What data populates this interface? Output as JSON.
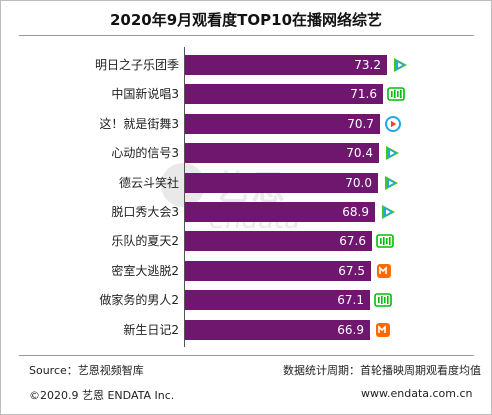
{
  "header": {
    "title": "2020年9月观看度TOP10在播网络综艺"
  },
  "chart_data": {
    "type": "bar",
    "orientation": "horizontal",
    "title": "2020年9月观看度TOP10在播网络综艺",
    "categories": [
      "明日之子乐团季",
      "中国新说唱3",
      "这！就是街舞3",
      "心动的信号3",
      "德云斗笑社",
      "脱口秀大会3",
      "乐队的夏天2",
      "密室大逃脱2",
      "做家务的男人2",
      "新生日记2"
    ],
    "values": [
      73.2,
      71.6,
      70.7,
      70.4,
      70.0,
      68.9,
      67.6,
      67.5,
      67.1,
      66.9
    ],
    "value_labels": [
      "73.2",
      "71.6",
      "70.7",
      "70.4",
      "70.0",
      "68.9",
      "67.6",
      "67.5",
      "67.1",
      "66.9"
    ],
    "platforms": [
      "tencent-video",
      "iqiyi",
      "youku",
      "tencent-video",
      "tencent-video",
      "tencent-video",
      "iqiyi",
      "mango-tv",
      "iqiyi",
      "mango-tv"
    ],
    "xlim": [
      0,
      73.2
    ],
    "grid": false,
    "bar_color": "#6f176f"
  },
  "platform_colors": {
    "tencent-video": "#20a7e6",
    "tencent-video-accent": "#ff9900",
    "tencent-video-accent2": "#48c12c",
    "iqiyi": "#00be06",
    "youku": "#1ea8ea",
    "youku-accent": "#ff3a3a",
    "mango-tv": "#ff6a00"
  },
  "watermark": {
    "brand_cn": "艺恩",
    "brand_en": "endata"
  },
  "footer": {
    "source": "Source：艺恩视频智库",
    "note": "数据统计周期：首轮播映周期观看度均值",
    "copyright": "©2020.9 艺恩 ENDATA Inc.",
    "website": "www.endata.com.cn"
  }
}
